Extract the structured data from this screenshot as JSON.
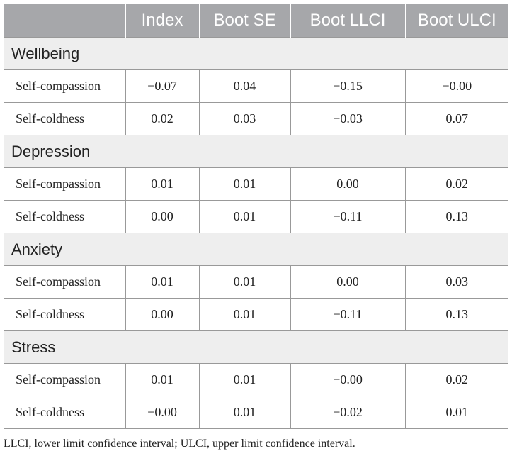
{
  "headers": [
    "",
    "Index",
    "Boot SE",
    "Boot LLCI",
    "Boot ULCI"
  ],
  "sections": [
    {
      "name": "Wellbeing",
      "rows": [
        {
          "label": "Self-compassion",
          "values": [
            "−0.07",
            "0.04",
            "−0.15",
            "−0.00"
          ]
        },
        {
          "label": "Self-coldness",
          "values": [
            "0.02",
            "0.03",
            "−0.03",
            "0.07"
          ]
        }
      ]
    },
    {
      "name": "Depression",
      "rows": [
        {
          "label": "Self-compassion",
          "values": [
            "0.01",
            "0.01",
            "0.00",
            "0.02"
          ]
        },
        {
          "label": "Self-coldness",
          "values": [
            "0.00",
            "0.01",
            "−0.11",
            "0.13"
          ]
        }
      ]
    },
    {
      "name": "Anxiety",
      "rows": [
        {
          "label": "Self-compassion",
          "values": [
            "0.01",
            "0.01",
            "0.00",
            "0.03"
          ]
        },
        {
          "label": "Self-coldness",
          "values": [
            "0.00",
            "0.01",
            "−0.11",
            "0.13"
          ]
        }
      ]
    },
    {
      "name": "Stress",
      "rows": [
        {
          "label": "Self-compassion",
          "values": [
            "0.01",
            "0.01",
            "−0.00",
            "0.02"
          ]
        },
        {
          "label": "Self-coldness",
          "values": [
            "−0.00",
            "0.01",
            "−0.02",
            "0.01"
          ]
        }
      ]
    }
  ],
  "footnote": "LLCI, lower limit confidence interval; ULCI, upper limit confidence interval."
}
